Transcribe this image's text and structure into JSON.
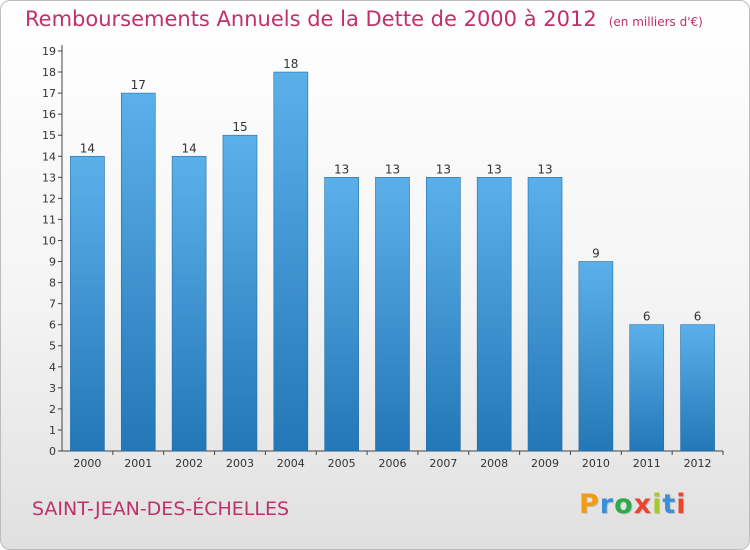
{
  "header": {
    "title": "Remboursements Annuels de la Dette de 2000 à 2012",
    "subtitle": "(en milliers d'€)"
  },
  "footer": {
    "town": "SAINT-JEAN-DES-ÉCHELLES",
    "brand": "Proxiti",
    "brand_colors": [
      "#f39c12",
      "#3b8fd8",
      "#2eaa4a",
      "#e8462e",
      "#a8c832",
      "#3b8fd8",
      "#e8462e"
    ]
  },
  "colors": {
    "title": "#c0306a",
    "bar_top": "#5cb0ea",
    "bar_bottom": "#2477b6",
    "axis": "#444444"
  },
  "chart_data": {
    "type": "bar",
    "categories": [
      "2000",
      "2001",
      "2002",
      "2003",
      "2004",
      "2005",
      "2006",
      "2007",
      "2008",
      "2009",
      "2010",
      "2011",
      "2012"
    ],
    "values": [
      14,
      17,
      14,
      15,
      18,
      13,
      13,
      13,
      13,
      13,
      9,
      6,
      6
    ],
    "ylim": [
      0,
      19
    ],
    "yticks": [
      0,
      1,
      2,
      3,
      4,
      5,
      6,
      7,
      8,
      9,
      10,
      11,
      12,
      13,
      14,
      15,
      16,
      17,
      18,
      19
    ],
    "xlabel": "",
    "ylabel": "",
    "grid": false,
    "data_labels": true
  }
}
